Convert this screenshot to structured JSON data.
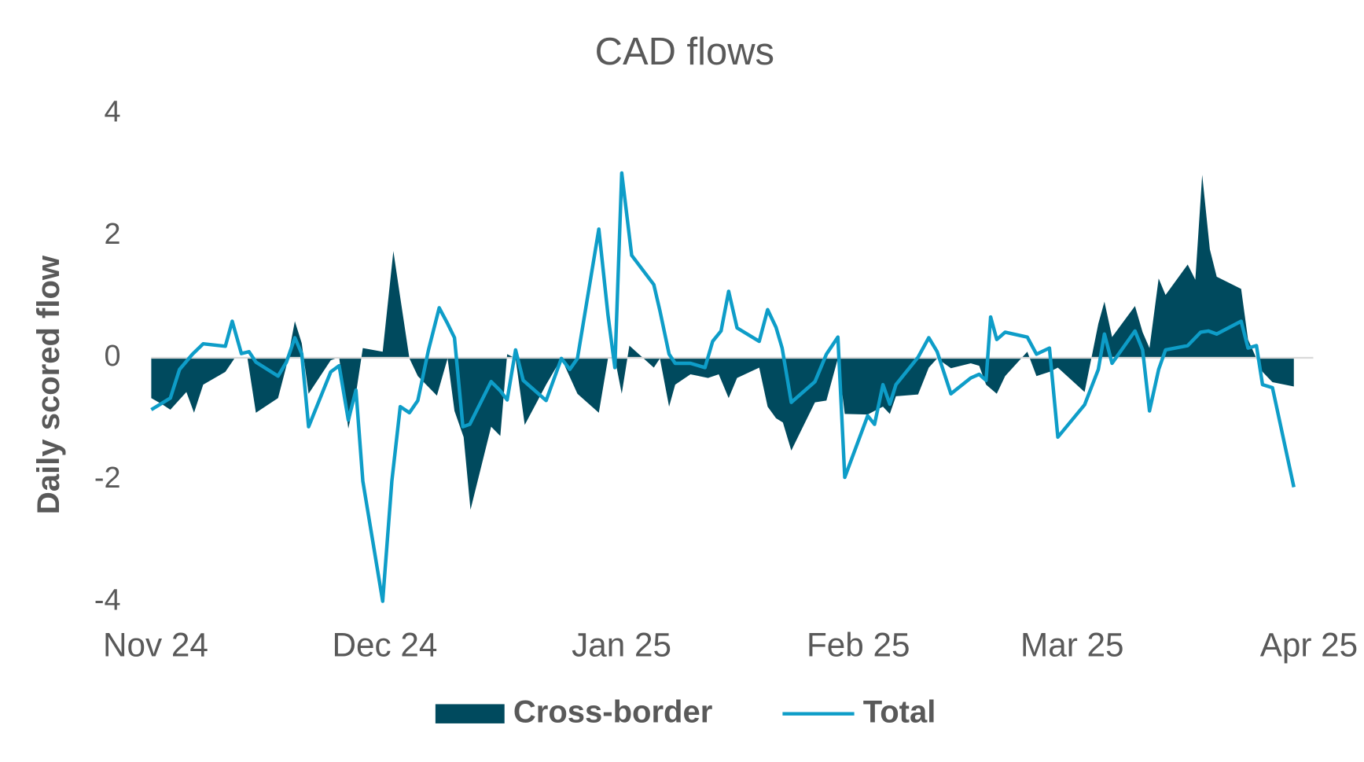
{
  "chart_data": {
    "type": "line",
    "title": "CAD flows",
    "y_label": "Daily scored flow",
    "xlim": [
      0,
      151
    ],
    "xticks": [
      {
        "value": 0,
        "label": "Nov 24"
      },
      {
        "value": 30,
        "label": "Dec 24"
      },
      {
        "value": 61,
        "label": "Jan 25"
      },
      {
        "value": 92,
        "label": "Feb 25"
      },
      {
        "value": 120,
        "label": "Mar 25"
      },
      {
        "value": 151,
        "label": "Apr 25"
      }
    ],
    "ylim": [
      -4,
      4
    ],
    "yticks": [
      -4,
      -2,
      0,
      2,
      4
    ],
    "series": [
      {
        "name": "Cross-border",
        "type": "area",
        "color": "#004a5e",
        "x": [
          0,
          1.4,
          2.5,
          4.6,
          5.6,
          6.8,
          9.7,
          10.9,
          12.6,
          13.7,
          16.6,
          17.7,
          18.8,
          19.7,
          20.6,
          23.5,
          24.6,
          25.8,
          26.8,
          27.7,
          30.3,
          31.7,
          32.6,
          33.8,
          34.9,
          37.4,
          38.8,
          39.7,
          40.9,
          41.8,
          44.5,
          45.7,
          46.6,
          47.7,
          48.9,
          51.7,
          53.7,
          55.8,
          58.6,
          59.8,
          60.7,
          61.6,
          62.6,
          65.8,
          66.6,
          67.8,
          68.6,
          70.6,
          72.9,
          74.3,
          75.6,
          76.7,
          79.6,
          80.7,
          81.8,
          82.7,
          83.8,
          86.9,
          88.4,
          89.9,
          90.8,
          93.8,
          94.7,
          95.8,
          96.7,
          97.5,
          100.4,
          101.8,
          102.9,
          104.7,
          107.3,
          108.4,
          109.3,
          110.7,
          111.8,
          114.7,
          115.9,
          117.6,
          118.7,
          122.2,
          124.0,
          124.8,
          125.8,
          128.8,
          129.8,
          130.7,
          131.9,
          132.8,
          135.7,
          136.7,
          137.6,
          138.6,
          139.5,
          142.7,
          143.6,
          144.7,
          145.5,
          146.8,
          149.6
        ],
        "values": [
          -0.66,
          -0.76,
          -0.85,
          -0.56,
          -0.9,
          -0.44,
          -0.23,
          -0.01,
          -0.01,
          -0.9,
          -0.66,
          -0.13,
          0.6,
          0.24,
          -0.59,
          -0.04,
          0.01,
          -1.16,
          -0.59,
          0.16,
          0.1,
          1.75,
          0.99,
          -0.01,
          -0.3,
          -0.62,
          -0.01,
          -0.87,
          -1.3,
          -2.49,
          -1.13,
          -1.28,
          0.06,
          -0.01,
          -1.1,
          -0.44,
          -0.01,
          -0.59,
          -0.9,
          -0.01,
          -0.01,
          -0.59,
          0.2,
          -0.16,
          -0.01,
          -0.8,
          -0.44,
          -0.27,
          -0.33,
          -0.27,
          -0.66,
          -0.33,
          -0.16,
          -0.8,
          -0.99,
          -1.06,
          -1.52,
          -0.73,
          -0.7,
          -0.01,
          -0.92,
          -0.93,
          -0.87,
          -0.8,
          -0.92,
          -0.63,
          -0.6,
          -0.16,
          -0.01,
          -0.17,
          -0.09,
          -0.13,
          -0.44,
          -0.59,
          -0.3,
          0.1,
          -0.3,
          -0.23,
          -0.16,
          -0.56,
          0.56,
          0.92,
          0.34,
          0.85,
          0.42,
          0.16,
          1.3,
          1.03,
          1.53,
          1.28,
          3.0,
          1.78,
          1.33,
          1.13,
          0.3,
          -0.01,
          -0.23,
          -0.4,
          -0.47
        ]
      },
      {
        "name": "Total",
        "type": "line",
        "color": "#0e9dc8",
        "x": [
          0,
          2.5,
          3.7,
          5.4,
          6.8,
          9.7,
          10.6,
          11.8,
          12.8,
          13.7,
          16.6,
          17.7,
          18.8,
          19.7,
          20.6,
          23.5,
          24.6,
          25.8,
          26.8,
          27.7,
          30.3,
          31.5,
          32.6,
          33.8,
          34.9,
          36.3,
          37.7,
          38.8,
          39.7,
          40.8,
          41.7,
          44.5,
          45.7,
          46.6,
          47.7,
          48.7,
          51.7,
          53.7,
          54.8,
          55.8,
          58.6,
          59.8,
          60.7,
          61.6,
          62.9,
          65.8,
          66.6,
          67.8,
          68.6,
          70.6,
          72.5,
          73.5,
          74.6,
          75.6,
          76.7,
          79.6,
          80.7,
          81.8,
          82.6,
          83.8,
          86.9,
          88.4,
          89.9,
          90.8,
          93.8,
          94.7,
          95.8,
          96.7,
          97.5,
          100.4,
          101.8,
          102.9,
          104.7,
          107.3,
          108.4,
          109.3,
          109.9,
          110.7,
          111.8,
          114.7,
          115.9,
          117.6,
          118.7,
          122.2,
          124.0,
          124.8,
          125.8,
          128.8,
          129.8,
          130.7,
          131.9,
          132.8,
          135.7,
          137.4,
          138.4,
          139.5,
          142.7,
          143.6,
          144.7,
          145.5,
          146.8,
          149.6
        ],
        "values": [
          -0.85,
          -0.66,
          -0.19,
          0.06,
          0.23,
          0.19,
          0.6,
          0.07,
          0.1,
          -0.07,
          -0.3,
          -0.07,
          0.33,
          0.07,
          -1.13,
          -0.23,
          -0.13,
          -1.02,
          -0.53,
          -2.02,
          -3.99,
          -2.02,
          -0.8,
          -0.9,
          -0.7,
          0.13,
          0.82,
          0.56,
          0.33,
          -1.13,
          -1.09,
          -0.39,
          -0.54,
          -0.69,
          0.13,
          -0.37,
          -0.7,
          -0.01,
          -0.19,
          -0.01,
          2.11,
          0.7,
          -0.16,
          3.03,
          1.68,
          1.2,
          0.77,
          0.06,
          -0.09,
          -0.09,
          -0.16,
          0.27,
          0.44,
          1.09,
          0.49,
          0.27,
          0.79,
          0.5,
          0.16,
          -0.73,
          -0.39,
          0.06,
          0.34,
          -1.96,
          -0.95,
          -1.09,
          -0.44,
          -0.76,
          -0.44,
          0.01,
          0.33,
          0.1,
          -0.59,
          -0.33,
          -0.27,
          -0.37,
          0.67,
          0.3,
          0.42,
          0.34,
          0.06,
          0.16,
          -1.3,
          -0.77,
          -0.19,
          0.39,
          -0.09,
          0.44,
          0.13,
          -0.87,
          -0.19,
          0.13,
          0.2,
          0.42,
          0.44,
          0.39,
          0.6,
          0.16,
          0.2,
          -0.44,
          -0.49,
          -2.12
        ]
      }
    ]
  }
}
